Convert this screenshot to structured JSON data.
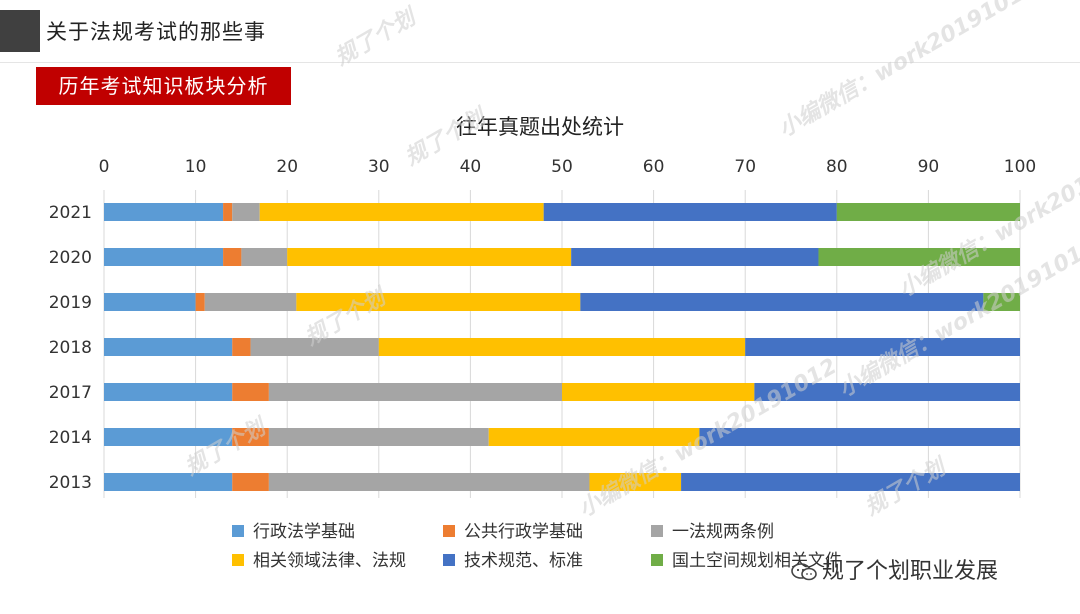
{
  "header": {
    "title": "关于法规考试的那些事"
  },
  "section": {
    "label": "历年考试知识板块分析"
  },
  "footer": {
    "brand": "规了个划职业发展"
  },
  "watermark": {
    "lines": [
      "规了个划",
      "小编微信：work20191012"
    ]
  },
  "colors": {
    "series": [
      "#5b9bd5",
      "#ed7d31",
      "#a5a5a5",
      "#ffc000",
      "#4472c4",
      "#70ad47"
    ],
    "header_square": "#404040",
    "section_bg": "#c00000"
  },
  "chart_data": {
    "type": "bar",
    "orientation": "horizontal",
    "stacked": true,
    "title": "往年真题出处统计",
    "categories": [
      "2021",
      "2020",
      "2019",
      "2018",
      "2017",
      "2014",
      "2013"
    ],
    "xlim": [
      0,
      100
    ],
    "xticks": [
      0,
      10,
      20,
      30,
      40,
      50,
      60,
      70,
      80,
      90,
      100
    ],
    "legend_position": "bottom",
    "series": [
      {
        "name": "行政法学基础",
        "values": [
          13,
          13,
          10,
          14,
          14,
          14,
          14
        ]
      },
      {
        "name": "公共行政学基础",
        "values": [
          1,
          2,
          1,
          2,
          4,
          4,
          4
        ]
      },
      {
        "name": "一法规两条例",
        "values": [
          3,
          5,
          10,
          14,
          32,
          24,
          35
        ]
      },
      {
        "name": "相关领域法律、法规",
        "values": [
          31,
          31,
          31,
          40,
          21,
          23,
          10
        ]
      },
      {
        "name": "技术规范、标准",
        "values": [
          32,
          27,
          44,
          30,
          29,
          35,
          37
        ]
      },
      {
        "name": "国土空间规划相关文件",
        "values": [
          20,
          22,
          4,
          0,
          0,
          0,
          0
        ]
      }
    ]
  }
}
